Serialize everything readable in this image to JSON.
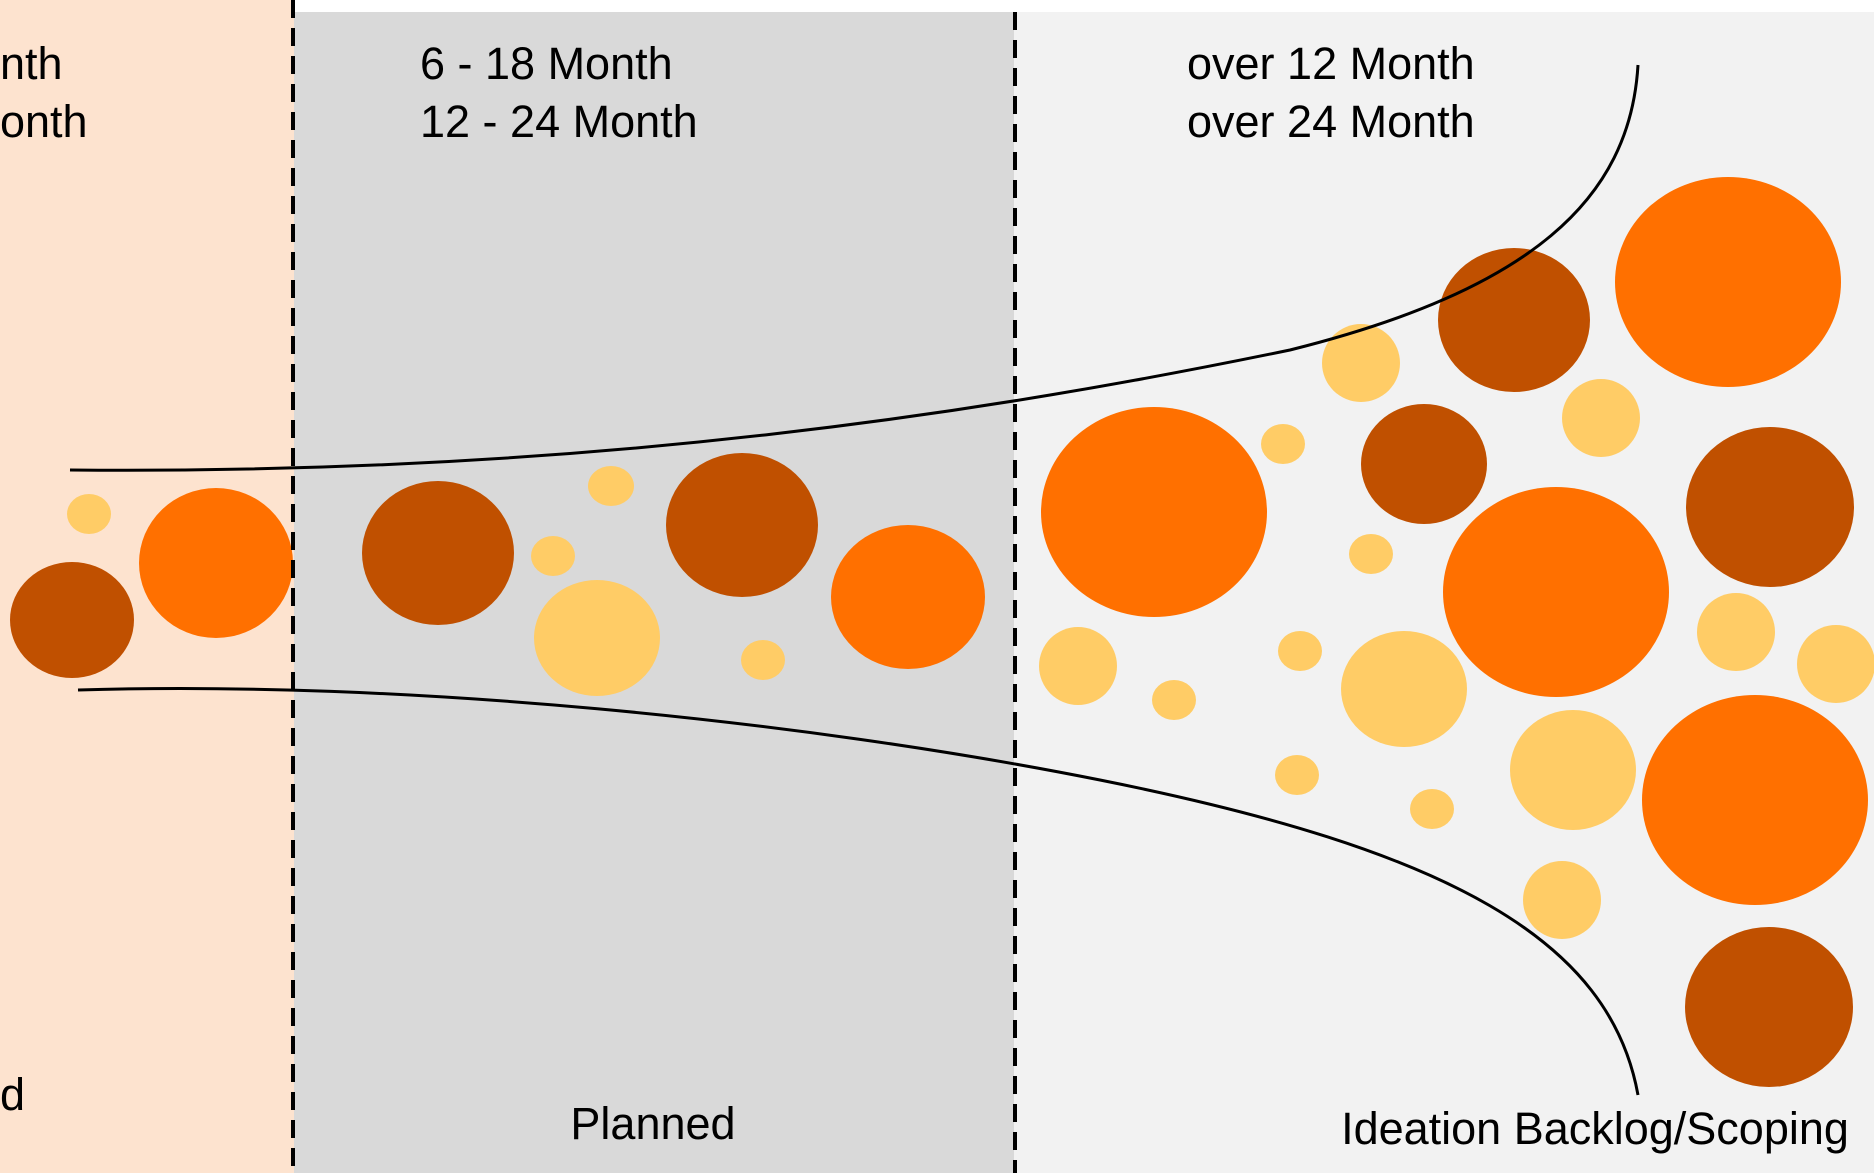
{
  "colors": {
    "zone_left": "#fde3cf",
    "zone_middle": "#d9d9d9",
    "zone_right": "#f2f2f2",
    "dark_brown": "#c05000",
    "orange": "#ff7000",
    "light_yellow": "#ffcc66",
    "line": "#000000"
  },
  "zones": [
    {
      "id": "left",
      "timeline": [
        "nth",
        "onth"
      ],
      "stage": "d"
    },
    {
      "id": "middle",
      "timeline": [
        "6 - 18 Month",
        "12 - 24 Month"
      ],
      "stage": "Planned"
    },
    {
      "id": "right",
      "timeline": [
        "over 12 Month",
        "over 24 Month"
      ],
      "stage": "Ideation Backlog/Scoping"
    }
  ],
  "bubble_color_legend": [
    "dark_brown",
    "orange",
    "light_yellow"
  ]
}
